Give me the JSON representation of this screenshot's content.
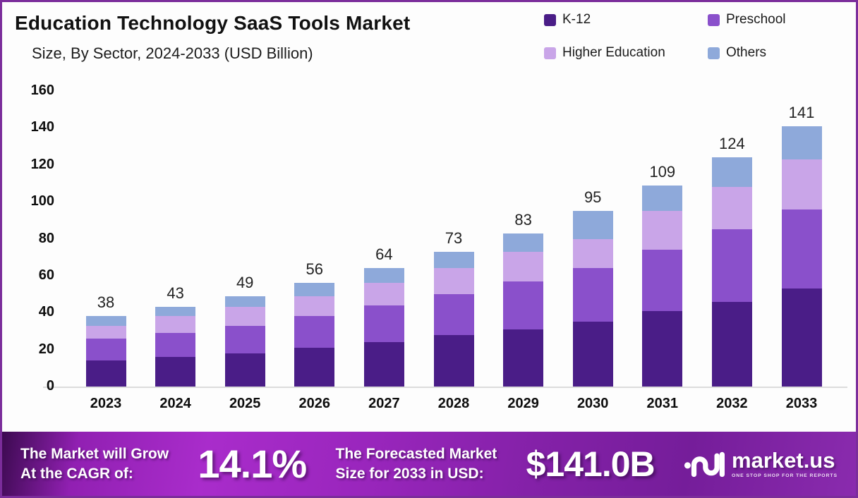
{
  "chart_data": {
    "type": "bar",
    "stacked": true,
    "title": "Education Technology SaaS Tools Market",
    "subtitle": "Size, By Sector, 2024-2033 (USD Billion)",
    "categories": [
      "2023",
      "2024",
      "2025",
      "2026",
      "2027",
      "2028",
      "2029",
      "2030",
      "2031",
      "2032",
      "2033"
    ],
    "series": [
      {
        "name": "K-12",
        "color": "#4a1d87",
        "values": [
          14,
          16,
          18,
          21,
          24,
          28,
          31,
          35,
          41,
          46,
          53
        ]
      },
      {
        "name": "Preschool",
        "color": "#8a50cb",
        "values": [
          12,
          13,
          15,
          17,
          20,
          22,
          26,
          29,
          33,
          39,
          43
        ]
      },
      {
        "name": "Higher Education",
        "color": "#c9a5e8",
        "values": [
          7,
          9,
          10,
          11,
          12,
          14,
          16,
          16,
          21,
          23,
          27
        ]
      },
      {
        "name": "Others",
        "color": "#8ea9da",
        "values": [
          5,
          5,
          6,
          7,
          8,
          9,
          10,
          15,
          14,
          16,
          18
        ]
      }
    ],
    "totals": [
      38,
      43,
      49,
      56,
      64,
      73,
      83,
      95,
      109,
      124,
      141
    ],
    "xlabel": "",
    "ylabel": "",
    "ylim": [
      0,
      160
    ],
    "yticks": [
      0,
      20,
      40,
      60,
      80,
      100,
      120,
      140,
      160
    ],
    "grid": false,
    "legend_position": "top-right"
  },
  "banner": {
    "grow_line1": "The Market will Grow",
    "grow_line2": "At the CAGR of:",
    "cagr_value": "14.1%",
    "forecast_line1": "The Forecasted Market",
    "forecast_line2": "Size for 2033 in USD:",
    "forecast_value": "$141.0B",
    "brand_name": "market.us",
    "brand_tagline": "ONE STOP SHOP FOR THE REPORTS"
  },
  "colors": {
    "frame_border": "#7b2d9b",
    "background": "#fdfdfd",
    "banner_purple": "#9a26bd",
    "axis_text": "#0d0d0d"
  }
}
